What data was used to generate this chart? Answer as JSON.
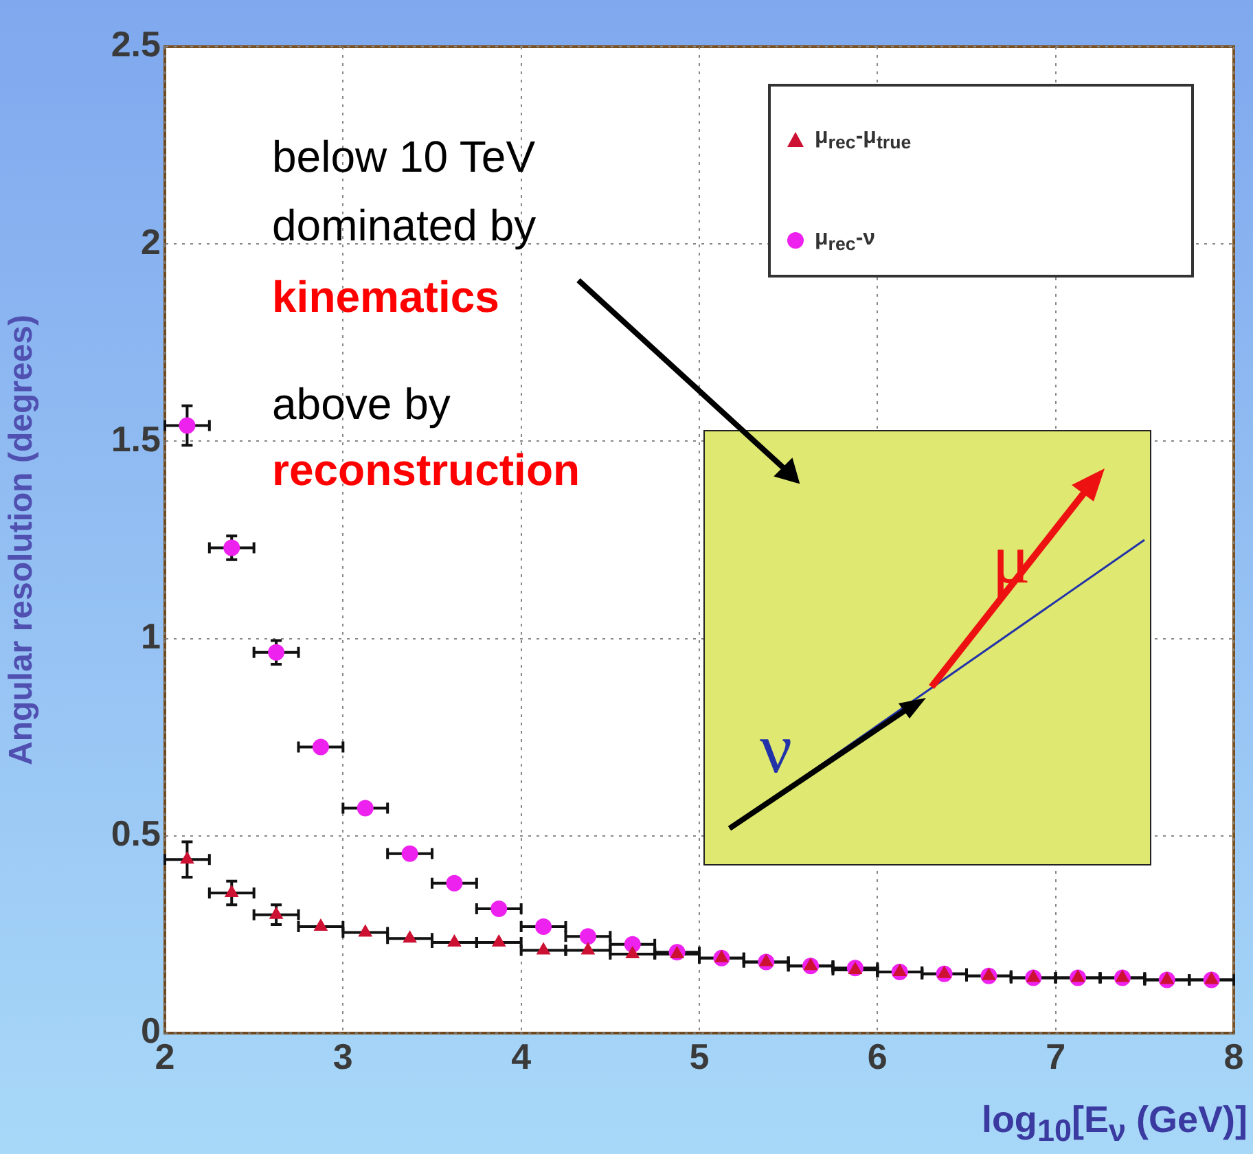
{
  "chart_data": {
    "type": "scatter",
    "xlabel": "log$_{10}$[E$_{ν}$ (GeV)]",
    "ylabel": "Angular resolution (degrees)",
    "x": [
      2.125,
      2.375,
      2.625,
      2.875,
      3.125,
      3.375,
      3.625,
      3.875,
      4.125,
      4.375,
      4.625,
      4.875,
      5.125,
      5.375,
      5.625,
      5.875,
      6.125,
      6.375,
      6.625,
      6.875,
      7.125,
      7.375,
      7.625,
      7.875
    ],
    "series": [
      {
        "name": "μ$_{rec}$-μ$_{true}$",
        "color": "#cc1133",
        "marker": "triangle",
        "values": [
          0.44,
          0.355,
          0.3,
          0.27,
          0.255,
          0.24,
          0.23,
          0.23,
          0.21,
          0.21,
          0.2,
          0.2,
          0.19,
          0.18,
          0.17,
          0.16,
          0.155,
          0.15,
          0.145,
          0.14,
          0.14,
          0.14,
          0.135,
          0.135
        ],
        "errors": [
          0.045,
          0.03,
          0.025,
          null,
          null,
          null,
          null,
          null,
          null,
          null,
          null,
          null,
          null,
          null,
          null,
          null,
          null,
          null,
          null,
          null,
          null,
          null,
          null,
          null
        ],
        "xerrors": [
          0.125,
          0.125,
          0.125,
          0.125,
          0.125,
          0.125,
          0.125,
          0.125,
          0.125,
          0.125,
          0.125,
          0.125,
          0.125,
          0.125,
          0.125,
          0.125,
          0.125,
          0.125,
          0.125,
          0.125,
          0.125,
          0.125,
          0.125,
          0.125
        ]
      },
      {
        "name": "μ$_{rec}$-ν",
        "color": "#ee22ee",
        "marker": "circle",
        "values": [
          1.54,
          1.23,
          0.965,
          0.725,
          0.57,
          0.455,
          0.38,
          0.315,
          0.27,
          0.245,
          0.225,
          0.205,
          0.19,
          0.18,
          0.17,
          0.165,
          0.155,
          0.15,
          0.145,
          0.14,
          0.14,
          0.14,
          0.135,
          0.135
        ],
        "errors": [
          0.05,
          0.03,
          0.03,
          null,
          null,
          null,
          null,
          null,
          null,
          null,
          null,
          null,
          null,
          null,
          null,
          null,
          null,
          null,
          null,
          null,
          null,
          null,
          null,
          null
        ],
        "xerrors": [
          0.125,
          0.125,
          0.125,
          0.125,
          0.125,
          0.125,
          0.125,
          0.125,
          0.125,
          0.125,
          0.125,
          0.125,
          0.125,
          0.125,
          0.125,
          0.125,
          0.125,
          0.125,
          0.125,
          0.125,
          0.125,
          0.125,
          0.125,
          0.125
        ]
      }
    ],
    "xlim": [
      2,
      8
    ],
    "xticks": [
      2,
      3,
      4,
      5,
      6,
      7,
      8
    ],
    "ylim": [
      0,
      2.5
    ],
    "yticks": [
      0,
      {
        "value": 0.5,
        "label": "0.5"
      },
      1,
      {
        "value": 1.5,
        "label": "1.5"
      },
      2,
      {
        "value": 2.5,
        "label": "2.5"
      }
    ],
    "grid": true,
    "legend": "top right",
    "annotations": [
      "below 10 TeV",
      "dominated by",
      "kinematics",
      "above by",
      "reconstruction",
      "ν",
      "μ"
    ]
  }
}
